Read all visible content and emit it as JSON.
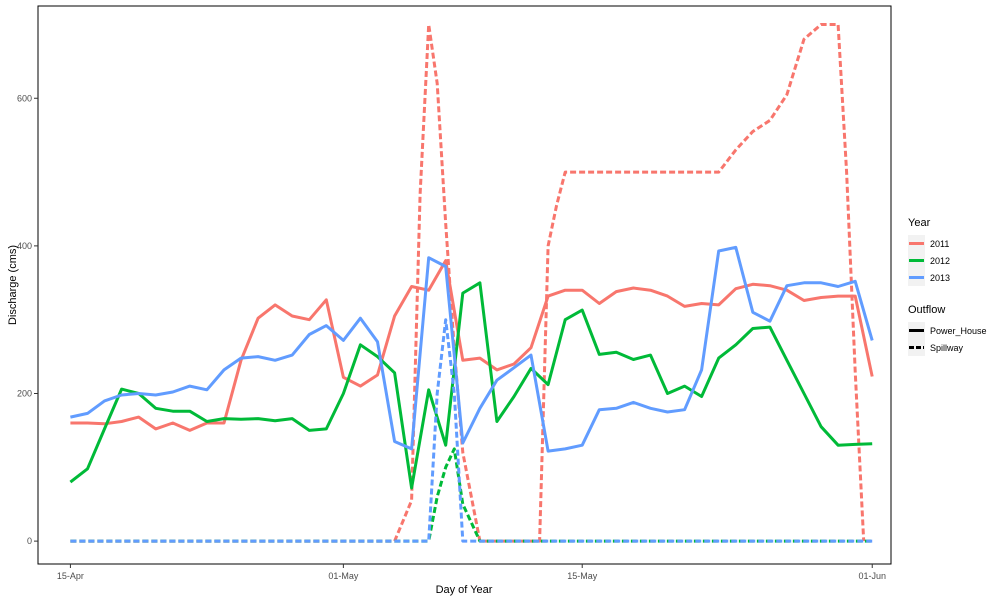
{
  "chart_data": {
    "type": "line",
    "xlabel": "Day of Year",
    "ylabel": "Discharge (cms)",
    "x_ticks": [
      "15-Apr",
      "01-May",
      "15-May",
      "01-Jun"
    ],
    "x_tick_days": [
      105,
      121,
      135,
      152
    ],
    "y_ticks": [
      "0",
      "200",
      "400",
      "600"
    ],
    "y_tick_values": [
      0,
      200,
      400,
      600
    ],
    "xlim": [
      103.1,
      153.1
    ],
    "ylim": [
      -31,
      725
    ],
    "grid": false,
    "legend_position": "right",
    "legends": [
      {
        "title": "Year",
        "key": "year",
        "entries": [
          {
            "label": "2011",
            "color": "#F8766D"
          },
          {
            "label": "2012",
            "color": "#00BA38"
          },
          {
            "label": "2013",
            "color": "#619CFF"
          }
        ]
      },
      {
        "title": "Outflow",
        "key": "outflow",
        "entries": [
          {
            "label": "Power_House",
            "linetype": "solid"
          },
          {
            "label": "Spillway",
            "linetype": "dashed"
          }
        ]
      }
    ],
    "series": [
      {
        "year": "2011",
        "outflow": "Power_House",
        "color": "#F8766D",
        "linetype": "solid",
        "x": [
          105,
          106,
          107,
          108,
          109,
          110,
          111,
          112,
          113,
          114,
          115,
          116,
          117,
          118,
          119,
          120,
          121,
          122,
          123,
          124,
          125,
          126,
          127,
          128,
          129,
          130,
          131,
          132,
          133,
          134,
          135,
          136,
          137,
          138,
          139,
          140,
          141,
          142,
          143,
          144,
          145,
          146,
          147,
          148,
          149,
          150,
          151,
          152
        ],
        "y": [
          160,
          160,
          159,
          162,
          168,
          152,
          160,
          150,
          160,
          160,
          245,
          302,
          320,
          305,
          300,
          327,
          222,
          210,
          225,
          305,
          345,
          340,
          380,
          245,
          248,
          232,
          240,
          262,
          332,
          340,
          340,
          322,
          338,
          343,
          340,
          332,
          318,
          322,
          320,
          342,
          348,
          346,
          340,
          326,
          330,
          332,
          332,
          223
        ]
      },
      {
        "year": "2011",
        "outflow": "Spillway",
        "color": "#F8766D",
        "linetype": "dashed",
        "x": [
          105,
          106,
          107,
          108,
          109,
          110,
          111,
          112,
          113,
          114,
          115,
          116,
          117,
          118,
          119,
          120,
          121,
          122,
          123,
          124,
          125,
          125.5,
          126,
          126.5,
          127,
          127.5,
          128,
          129,
          130,
          131,
          132,
          132.5,
          133,
          133.5,
          134,
          135,
          136,
          137,
          138,
          139,
          140,
          141,
          142,
          143,
          144,
          145,
          146,
          147,
          148,
          149,
          150,
          150.5,
          151,
          151.5
        ],
        "y": [
          0,
          0,
          0,
          0,
          0,
          0,
          0,
          0,
          0,
          0,
          0,
          0,
          0,
          0,
          0,
          0,
          0,
          0,
          0,
          0,
          55,
          470,
          700,
          620,
          430,
          260,
          120,
          0,
          0,
          0,
          0,
          0,
          400,
          455,
          500,
          500,
          500,
          500,
          500,
          500,
          500,
          500,
          500,
          500,
          530,
          555,
          570,
          605,
          680,
          700,
          700,
          500,
          230,
          0
        ]
      },
      {
        "year": "2012",
        "outflow": "Power_House",
        "color": "#00BA38",
        "linetype": "solid",
        "x": [
          105,
          106,
          107,
          108,
          109,
          110,
          111,
          112,
          113,
          114,
          115,
          116,
          117,
          118,
          119,
          120,
          121,
          122,
          123,
          124,
          125,
          126,
          127,
          128,
          129,
          130,
          131,
          132,
          133,
          134,
          135,
          136,
          137,
          138,
          139,
          140,
          141,
          142,
          143,
          144,
          145,
          146,
          147,
          148,
          149,
          150,
          151,
          152
        ],
        "y": [
          80,
          98,
          152,
          206,
          200,
          180,
          176,
          176,
          162,
          166,
          165,
          166,
          163,
          166,
          150,
          152,
          200,
          266,
          250,
          228,
          72,
          205,
          130,
          336,
          350,
          162,
          196,
          234,
          212,
          300,
          313,
          253,
          256,
          246,
          252,
          200,
          210,
          196,
          248,
          266,
          288,
          290,
          245,
          200,
          155,
          130,
          131,
          132
        ]
      },
      {
        "year": "2012",
        "outflow": "Spillway",
        "color": "#00BA38",
        "linetype": "dashed",
        "x": [
          105,
          110,
          115,
          120,
          125,
          126,
          126.5,
          127,
          127.5,
          128,
          129,
          130,
          135,
          140,
          145,
          150,
          152
        ],
        "y": [
          0,
          0,
          0,
          0,
          0,
          0,
          60,
          100,
          125,
          50,
          0,
          0,
          0,
          0,
          0,
          0,
          0
        ]
      },
      {
        "year": "2013",
        "outflow": "Power_House",
        "color": "#619CFF",
        "linetype": "solid",
        "x": [
          105,
          106,
          107,
          108,
          109,
          110,
          111,
          112,
          113,
          114,
          115,
          116,
          117,
          118,
          119,
          120,
          121,
          122,
          123,
          124,
          125,
          126,
          127,
          128,
          129,
          130,
          131,
          132,
          133,
          134,
          135,
          136,
          137,
          138,
          139,
          140,
          141,
          142,
          143,
          144,
          145,
          146,
          147,
          148,
          149,
          150,
          151,
          152
        ],
        "y": [
          168,
          173,
          190,
          198,
          200,
          198,
          202,
          210,
          205,
          232,
          248,
          250,
          245,
          252,
          280,
          292,
          272,
          302,
          270,
          135,
          125,
          384,
          372,
          133,
          180,
          218,
          235,
          252,
          122,
          125,
          130,
          178,
          180,
          188,
          180,
          175,
          178,
          232,
          393,
          398,
          310,
          298,
          346,
          350,
          350,
          345,
          352,
          272
        ]
      },
      {
        "year": "2013",
        "outflow": "Spillway",
        "color": "#619CFF",
        "linetype": "dashed",
        "x": [
          105,
          110,
          115,
          120,
          124,
          125,
          126,
          126.5,
          127,
          127.5,
          128,
          128.5,
          129,
          135,
          140,
          145,
          150,
          152
        ],
        "y": [
          0,
          0,
          0,
          0,
          0,
          0,
          0,
          200,
          300,
          200,
          0,
          0,
          0,
          0,
          0,
          0,
          0,
          0
        ]
      }
    ]
  }
}
